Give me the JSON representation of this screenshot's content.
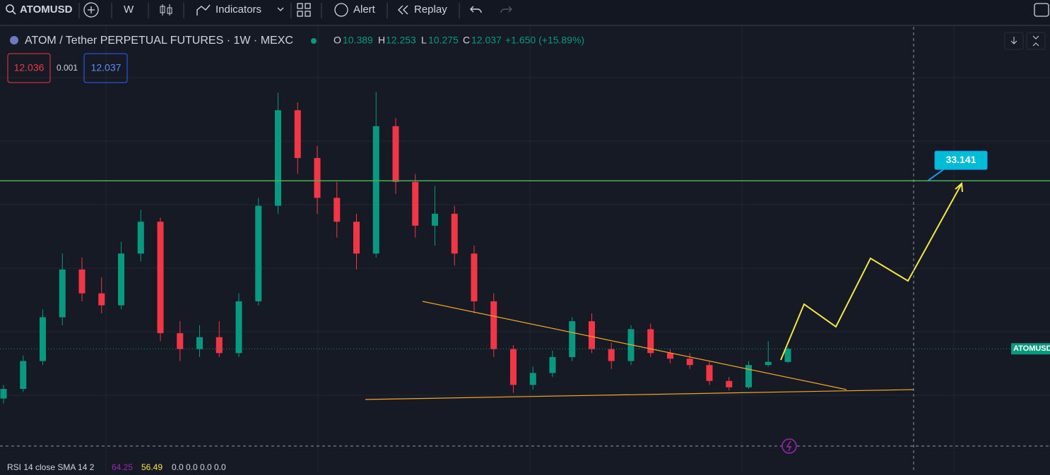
{
  "toolbar": {
    "symbol": "ATOMUSD",
    "interval": "W",
    "indicators": "Indicators",
    "alert": "Alert",
    "replay": "Replay"
  },
  "legend": {
    "title": "ATOM / Tether PERPETUAL FUTURES · 1W · MEXC",
    "o_label": "O",
    "open": 10.389,
    "h_label": "H",
    "high": 12.253,
    "l_label": "L",
    "low": 10.275,
    "c_label": "C",
    "close": 12.037,
    "change": "+1.650 (+15.89%)"
  },
  "quote": {
    "bid": 12.036,
    "spread": 0.001,
    "ask": 12.037
  },
  "chart_data": {
    "type": "candlestick",
    "ylim": [
      0,
      52.3
    ],
    "up_color": "#089981",
    "down_color": "#f23645",
    "level": 33.141,
    "level_color": "#4caf50",
    "price_label": "ATOMUSD",
    "candles": [
      [
        5.8,
        7.5,
        5.2,
        7.0
      ],
      [
        7.0,
        11.2,
        6.6,
        10.5
      ],
      [
        10.5,
        17.0,
        10.0,
        16.0
      ],
      [
        16.0,
        24.0,
        15.0,
        22.0
      ],
      [
        22.0,
        23.5,
        18.0,
        19.0
      ],
      [
        19.0,
        21.0,
        16.5,
        17.5
      ],
      [
        17.5,
        25.5,
        17.0,
        24.0
      ],
      [
        24.0,
        29.5,
        23.0,
        28.0
      ],
      [
        28.0,
        28.5,
        13.0,
        14.0
      ],
      [
        14.0,
        15.5,
        10.5,
        12.0
      ],
      [
        12.0,
        15.0,
        11.0,
        13.5
      ],
      [
        13.5,
        15.5,
        11.0,
        11.5
      ],
      [
        11.5,
        19.0,
        11.0,
        18.0
      ],
      [
        18.0,
        31.0,
        17.5,
        30.0
      ],
      [
        30.0,
        44.2,
        29.0,
        42.0
      ],
      [
        42.0,
        43.0,
        34.0,
        36.0
      ],
      [
        36.0,
        37.5,
        29.0,
        31.0
      ],
      [
        31.0,
        33.0,
        26.0,
        28.0
      ],
      [
        28.0,
        29.0,
        22.0,
        24.0
      ],
      [
        24.0,
        44.3,
        23.5,
        40.0
      ],
      [
        40.0,
        41.0,
        31.5,
        33.0
      ],
      [
        33.0,
        34.0,
        26.0,
        27.5
      ],
      [
        27.5,
        32.5,
        25.0,
        29.0
      ],
      [
        29.0,
        30.0,
        22.5,
        24.0
      ],
      [
        24.0,
        25.0,
        16.5,
        18.0
      ],
      [
        18.0,
        19.0,
        11.0,
        12.0
      ],
      [
        12.0,
        12.5,
        6.5,
        7.5
      ],
      [
        7.5,
        9.8,
        6.9,
        9.0
      ],
      [
        9.0,
        11.8,
        8.5,
        11.0
      ],
      [
        11.0,
        16.0,
        10.5,
        15.5
      ],
      [
        15.5,
        16.5,
        11.5,
        12.0
      ],
      [
        12.0,
        12.8,
        9.5,
        10.5
      ],
      [
        10.5,
        15.0,
        10.0,
        14.5
      ],
      [
        14.5,
        15.2,
        11.0,
        11.5
      ],
      [
        11.5,
        12.0,
        10.2,
        10.8
      ],
      [
        10.8,
        11.5,
        9.5,
        10.0
      ],
      [
        10.0,
        10.4,
        7.5,
        8.0
      ],
      [
        8.0,
        8.5,
        6.8,
        7.2
      ],
      [
        7.2,
        10.5,
        7.0,
        10.0
      ],
      [
        10.0,
        13.0,
        9.8,
        10.4
      ],
      [
        10.389,
        12.253,
        10.275,
        12.037
      ]
    ]
  },
  "rsi": {
    "label": "RSI 14 close SMA 14 2",
    "value": 64.25,
    "sma": 56.49,
    "rest": "0.0 0.0 0.0 0.0"
  }
}
